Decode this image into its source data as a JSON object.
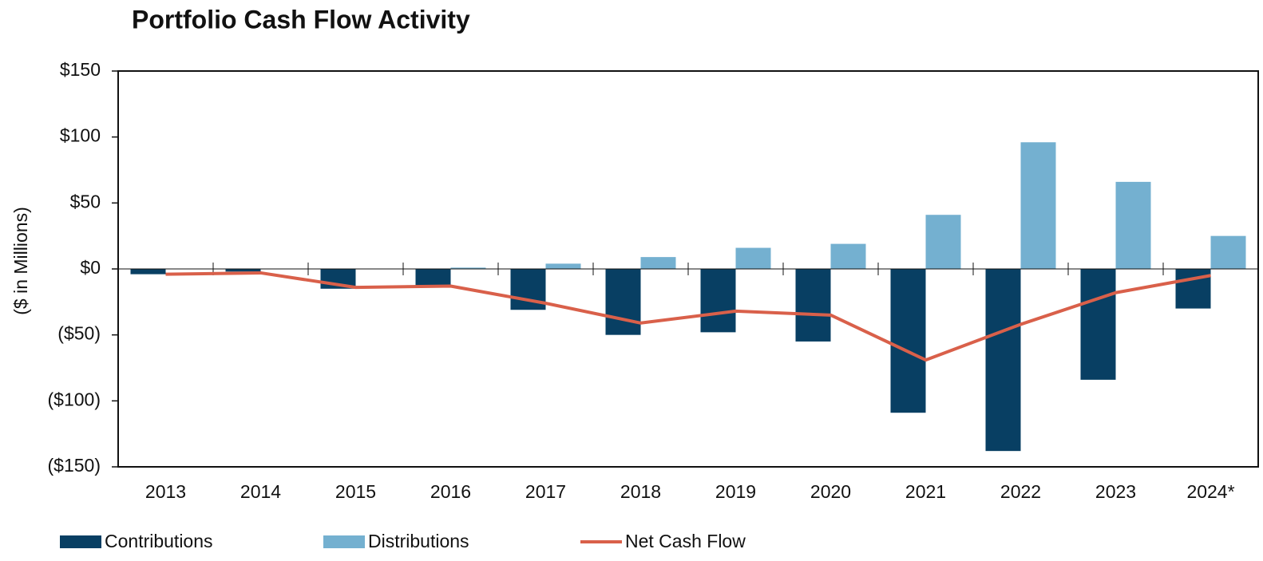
{
  "chart_data": {
    "type": "bar",
    "title": "Portfolio Cash Flow Activity",
    "y_label": "($ in Millions)",
    "categories": [
      "2013",
      "2014",
      "2015",
      "2016",
      "2017",
      "2018",
      "2019",
      "2020",
      "2021",
      "2022",
      "2023",
      "2024*"
    ],
    "series": [
      {
        "name": "Contributions",
        "color": "#083f63",
        "type": "bar",
        "values": [
          -4,
          -2,
          -15,
          -13,
          -31,
          -50,
          -48,
          -55,
          -109,
          -138,
          -84,
          -30
        ]
      },
      {
        "name": "Distributions",
        "color": "#74b0d0",
        "type": "bar",
        "values": [
          0,
          0,
          0,
          1,
          4,
          9,
          16,
          19,
          41,
          96,
          66,
          25
        ]
      },
      {
        "name": "Net Cash Flow",
        "color": "#d9604a",
        "type": "line",
        "values": [
          -4,
          -3,
          -14,
          -13,
          -26,
          -41,
          -32,
          -35,
          -69,
          -42,
          -18,
          -5
        ]
      }
    ],
    "ylim": [
      -150,
      150
    ],
    "yticks": [
      {
        "value": -150,
        "label": "($150)"
      },
      {
        "value": -100,
        "label": "($100)"
      },
      {
        "value": -50,
        "label": "($50)"
      },
      {
        "value": 0,
        "label": "$0"
      },
      {
        "value": 50,
        "label": "$50"
      },
      {
        "value": 100,
        "label": "$100"
      },
      {
        "value": 150,
        "label": "$150"
      }
    ]
  }
}
